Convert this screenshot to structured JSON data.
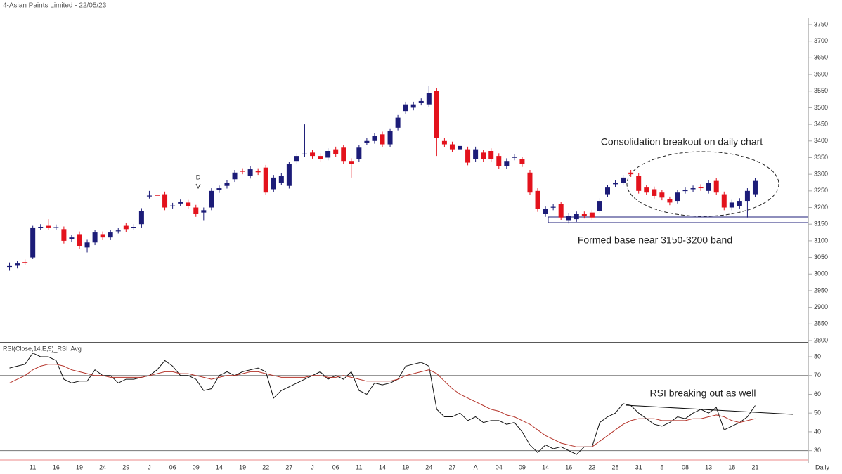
{
  "chart_data": [
    {
      "type": "candlestick",
      "title": "4-Asian Paints Limited - 22/05/23",
      "categories": [
        null,
        null,
        null,
        "11",
        null,
        null,
        "16",
        null,
        null,
        "19",
        null,
        null,
        "24",
        null,
        null,
        "29",
        null,
        null,
        "J",
        null,
        null,
        "06",
        null,
        null,
        "09",
        null,
        null,
        "14",
        null,
        null,
        "19",
        null,
        null,
        "22",
        null,
        null,
        "27",
        null,
        null,
        "J",
        null,
        null,
        "06",
        null,
        null,
        "11",
        null,
        null,
        "14",
        null,
        null,
        "19",
        null,
        null,
        "24",
        null,
        null,
        "27",
        null,
        null,
        "A",
        null,
        null,
        "04",
        null,
        null,
        "09",
        null,
        null,
        "14",
        null,
        null,
        "16",
        null,
        null,
        "23",
        null,
        null,
        "28",
        null,
        null,
        "31",
        null,
        null,
        "5",
        null,
        null,
        "08",
        null,
        null,
        "13",
        null,
        null,
        "18",
        null,
        null,
        "21"
      ],
      "x_label": "Daily",
      "open": [
        3022,
        3025,
        3036,
        3050,
        3140,
        3145,
        3140,
        3135,
        3105,
        3120,
        3080,
        3095,
        3120,
        3110,
        3130,
        3145,
        3140,
        3150,
        3235,
        3238,
        3240,
        3205,
        3212,
        3215,
        3200,
        3185,
        3200,
        3252,
        3265,
        3285,
        3310,
        3295,
        3310,
        3320,
        3255,
        3275,
        3265,
        3340,
        3360,
        3365,
        3355,
        3350,
        3375,
        3380,
        3340,
        3345,
        3395,
        3400,
        3420,
        3390,
        3440,
        3490,
        3500,
        3515,
        3510,
        3550,
        3400,
        3390,
        3375,
        3375,
        3345,
        3365,
        3370,
        3355,
        3325,
        3350,
        3345,
        3305,
        3250,
        3180,
        3200,
        3210,
        3160,
        3165,
        3180,
        3185,
        3190,
        3240,
        3270,
        3275,
        3305,
        3295,
        3260,
        3255,
        3245,
        3225,
        3220,
        3250,
        3255,
        3262,
        3250,
        3280,
        3240,
        3200,
        3205,
        3220,
        3240
      ],
      "high": [
        3035,
        3040,
        3044,
        3145,
        3150,
        3165,
        3149,
        3143,
        3118,
        3128,
        3103,
        3133,
        3128,
        3133,
        3139,
        3153,
        3150,
        3198,
        3250,
        3246,
        3248,
        3214,
        3224,
        3223,
        3208,
        3200,
        3258,
        3266,
        3283,
        3313,
        3318,
        3325,
        3318,
        3328,
        3298,
        3303,
        3338,
        3363,
        3450,
        3373,
        3363,
        3378,
        3383,
        3388,
        3348,
        3388,
        3408,
        3423,
        3428,
        3438,
        3478,
        3518,
        3518,
        3528,
        3565,
        3558,
        3408,
        3398,
        3393,
        3383,
        3383,
        3373,
        3378,
        3363,
        3348,
        3360,
        3353,
        3313,
        3258,
        3203,
        3210,
        3218,
        3183,
        3188,
        3188,
        3193,
        3228,
        3268,
        3283,
        3298,
        3313,
        3303,
        3268,
        3263,
        3253,
        3233,
        3253,
        3260,
        3266,
        3270,
        3283,
        3288,
        3248,
        3223,
        3228,
        3258,
        3288
      ],
      "low": [
        3010,
        3017,
        3026,
        3045,
        3132,
        3132,
        3132,
        3092,
        3097,
        3075,
        3065,
        3087,
        3102,
        3102,
        3122,
        3127,
        3132,
        3140,
        3227,
        3229,
        3192,
        3197,
        3204,
        3197,
        3172,
        3160,
        3192,
        3244,
        3257,
        3277,
        3300,
        3287,
        3298,
        3237,
        3247,
        3267,
        3257,
        3332,
        3352,
        3347,
        3337,
        3342,
        3352,
        3332,
        3290,
        3337,
        3387,
        3392,
        3382,
        3382,
        3432,
        3482,
        3492,
        3507,
        3502,
        3355,
        3382,
        3367,
        3367,
        3327,
        3337,
        3337,
        3337,
        3317,
        3317,
        3342,
        3322,
        3237,
        3187,
        3172,
        3192,
        3162,
        3152,
        3157,
        3167,
        3162,
        3182,
        3232,
        3262,
        3267,
        3292,
        3242,
        3237,
        3227,
        3222,
        3207,
        3212,
        3242,
        3247,
        3250,
        3242,
        3237,
        3192,
        3192,
        3197,
        3170,
        3232
      ],
      "close": [
        3024,
        3032,
        3034,
        3140,
        3142,
        3140,
        3141,
        3100,
        3110,
        3085,
        3095,
        3125,
        3110,
        3125,
        3131,
        3135,
        3142,
        3190,
        3236,
        3237,
        3200,
        3206,
        3216,
        3205,
        3180,
        3192,
        3250,
        3258,
        3275,
        3305,
        3308,
        3315,
        3306,
        3245,
        3290,
        3295,
        3330,
        3355,
        3362,
        3355,
        3345,
        3370,
        3360,
        3340,
        3330,
        3380,
        3400,
        3415,
        3390,
        3430,
        3470,
        3510,
        3510,
        3520,
        3545,
        3410,
        3390,
        3375,
        3385,
        3335,
        3375,
        3345,
        3345,
        3325,
        3340,
        3352,
        3330,
        3245,
        3195,
        3195,
        3202,
        3170,
        3175,
        3180,
        3175,
        3170,
        3220,
        3260,
        3275,
        3290,
        3300,
        3250,
        3245,
        3235,
        3230,
        3215,
        3245,
        3252,
        3258,
        3258,
        3275,
        3245,
        3200,
        3215,
        3220,
        3250,
        3280
      ],
      "up_color": "#1c1c78",
      "down_color": "#e3121c",
      "ylim": [
        2800,
        3750
      ],
      "yticks": [
        3750,
        3700,
        3650,
        3600,
        3550,
        3500,
        3450,
        3400,
        3350,
        3300,
        3250,
        3200,
        3150,
        3100,
        3050,
        3000,
        2950,
        2900,
        2850,
        2800
      ],
      "annotations": [
        "Consolidation breakout on daily chart",
        "Formed base near 3150-3200 band",
        "D"
      ]
    },
    {
      "type": "line",
      "series": [
        {
          "name": "RSI(Close,14,E,9)_RSI",
          "color": "#111111",
          "values": [
            74,
            75,
            76,
            82,
            80,
            80,
            78,
            68,
            66,
            67,
            67,
            73,
            70,
            70,
            66,
            68,
            68,
            69,
            70,
            73,
            78,
            75,
            70,
            70,
            68,
            62,
            63,
            70,
            72,
            70,
            72,
            73,
            74,
            72,
            58,
            62,
            64,
            66,
            68,
            70,
            72,
            68,
            70,
            68,
            72,
            62,
            60,
            66,
            65,
            66,
            68,
            75,
            76,
            77,
            75,
            52,
            48,
            48,
            50,
            46,
            48,
            45,
            46,
            46,
            44,
            45,
            40,
            33,
            29,
            33,
            31,
            32,
            30,
            28,
            32,
            32,
            45,
            48,
            50,
            55,
            54,
            50,
            47,
            44,
            43,
            45,
            48,
            47,
            50,
            52,
            50,
            53,
            41,
            43,
            45,
            48,
            54
          ]
        },
        {
          "name": "Avg",
          "color": "#b5342a",
          "values": [
            66,
            68,
            70,
            73,
            75,
            76,
            76,
            75,
            73,
            72,
            71,
            70,
            70,
            69,
            69,
            69,
            69,
            69,
            70,
            71,
            72,
            72,
            71,
            71,
            70,
            69,
            68,
            69,
            70,
            70,
            71,
            72,
            72,
            71,
            70,
            69,
            69,
            69,
            69,
            70,
            70,
            69,
            69,
            70,
            69,
            68,
            67,
            67,
            67,
            67,
            68,
            70,
            71,
            72,
            73,
            71,
            67,
            63,
            60,
            58,
            56,
            54,
            52,
            51,
            49,
            48,
            46,
            44,
            41,
            38,
            36,
            34,
            33,
            32,
            32,
            32,
            35,
            38,
            41,
            44,
            46,
            47,
            47,
            47,
            46,
            46,
            46,
            46,
            47,
            47,
            48,
            49,
            48,
            46,
            45,
            46,
            47
          ]
        }
      ],
      "ylim": [
        25,
        86
      ],
      "yticks": [
        80,
        70,
        60,
        50,
        40,
        30
      ],
      "reference_lines": [
        70,
        30
      ],
      "annotations": [
        "RSI breaking out as well"
      ]
    }
  ]
}
